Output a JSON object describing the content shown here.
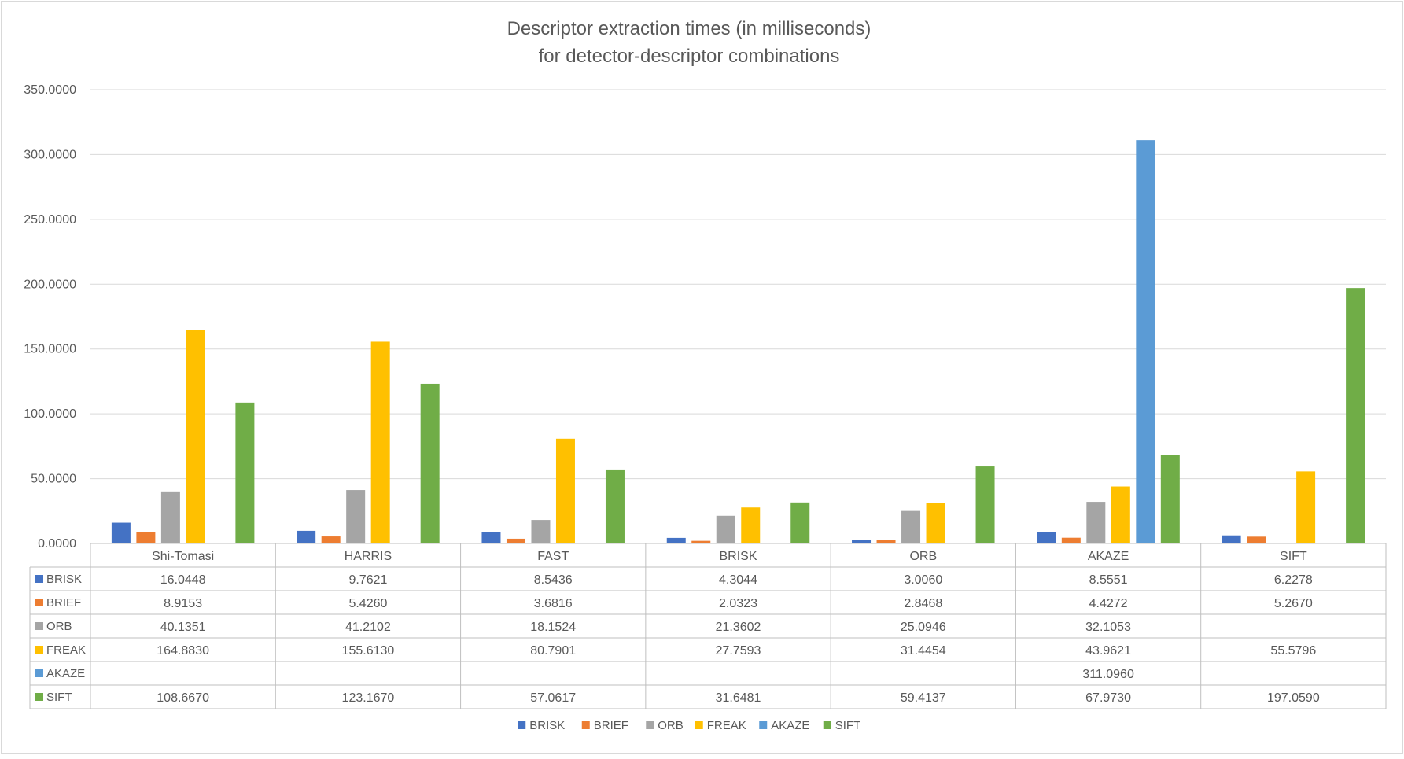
{
  "chart_data": {
    "type": "bar",
    "title": [
      "Descriptor extraction times (in milliseconds)",
      "for detector-descriptor combinations"
    ],
    "xlabel": "",
    "ylabel": "",
    "ylim": [
      0,
      350
    ],
    "y_ticks": [
      0,
      50,
      100,
      150,
      200,
      250,
      300,
      350
    ],
    "y_tick_labels": [
      "0.0000",
      "50.0000",
      "100.0000",
      "150.0000",
      "200.0000",
      "250.0000",
      "300.0000",
      "350.0000"
    ],
    "grid": true,
    "legend_position": "bottom",
    "data_table": true,
    "categories": [
      "Shi-Tomasi",
      "HARRIS",
      "FAST",
      "BRISK",
      "ORB",
      "AKAZE",
      "SIFT"
    ],
    "series": [
      {
        "name": "BRISK",
        "color": "#4472C4",
        "values": [
          16.0448,
          9.7621,
          8.5436,
          4.3044,
          3.006,
          8.5551,
          6.2278
        ],
        "labels": [
          "16.0448",
          "9.7621",
          "8.5436",
          "4.3044",
          "3.0060",
          "8.5551",
          "6.2278"
        ]
      },
      {
        "name": "BRIEF",
        "color": "#ED7D31",
        "values": [
          8.9153,
          5.426,
          3.6816,
          2.0323,
          2.8468,
          4.4272,
          5.267
        ],
        "labels": [
          "8.9153",
          "5.4260",
          "3.6816",
          "2.0323",
          "2.8468",
          "4.4272",
          "5.2670"
        ]
      },
      {
        "name": "ORB",
        "color": "#A5A5A5",
        "values": [
          40.1351,
          41.2102,
          18.1524,
          21.3602,
          25.0946,
          32.1053,
          null
        ],
        "labels": [
          "40.1351",
          "41.2102",
          "18.1524",
          "21.3602",
          "25.0946",
          "32.1053",
          ""
        ]
      },
      {
        "name": "FREAK",
        "color": "#FFC000",
        "values": [
          164.883,
          155.613,
          80.7901,
          27.7593,
          31.4454,
          43.9621,
          55.5796
        ],
        "labels": [
          "164.8830",
          "155.6130",
          "80.7901",
          "27.7593",
          "31.4454",
          "43.9621",
          "55.5796"
        ]
      },
      {
        "name": "AKAZE",
        "color": "#5B9BD5",
        "values": [
          null,
          null,
          null,
          null,
          null,
          311.096,
          null
        ],
        "labels": [
          "",
          "",
          "",
          "",
          "",
          "311.0960",
          ""
        ]
      },
      {
        "name": "SIFT",
        "color": "#70AD47",
        "values": [
          108.667,
          123.167,
          57.0617,
          31.6481,
          59.4137,
          67.973,
          197.059
        ],
        "labels": [
          "108.6670",
          "123.1670",
          "57.0617",
          "31.6481",
          "59.4137",
          "67.9730",
          "197.0590"
        ]
      }
    ]
  }
}
